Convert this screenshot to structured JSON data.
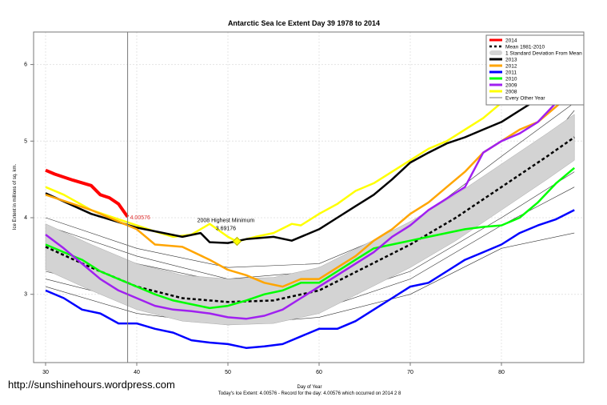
{
  "chart_data": {
    "type": "line",
    "title": "Antarctic Sea Ice Extent Day 39 1978 to 2014",
    "xlabel": "Day of Year",
    "ylabel": "Ice Extent in millions of sq. km.",
    "xlim": [
      29,
      89
    ],
    "ylim": [
      2.1,
      6.5
    ],
    "xticks": [
      30,
      40,
      50,
      60,
      70,
      80
    ],
    "yticks": [
      3,
      4,
      5,
      6
    ],
    "grid": true,
    "legend_position": "top-right",
    "footer": "Today's Ice Extent: 4.00576  - Record for the day: 4.00576 which occurred on 2014 2 8",
    "watermark": "http://sunshinehours.wordpress.com",
    "current_day": 39,
    "current_value_label": "4.00576",
    "annotation": {
      "title": "2008 Highest Minimum",
      "value": "3.69176",
      "day": 51,
      "y": 3.69176
    },
    "legend": [
      {
        "label": "2014",
        "color": "#ff0000",
        "style": "thick"
      },
      {
        "label": "Mean 1981-2010",
        "color": "#000000",
        "style": "dashed"
      },
      {
        "label": "1 Standard Deviation From Mean",
        "color": "#d3d3d3",
        "style": "band"
      },
      {
        "label": "2013",
        "color": "#000000",
        "style": "thick"
      },
      {
        "label": "2012",
        "color": "#ffa500",
        "style": "thick"
      },
      {
        "label": "2011",
        "color": "#0000ff",
        "style": "thick"
      },
      {
        "label": "2010",
        "color": "#00ff00",
        "style": "thick"
      },
      {
        "label": "2009",
        "color": "#a020f0",
        "style": "thick"
      },
      {
        "label": "2008",
        "color": "#ffff00",
        "style": "thick"
      },
      {
        "label": "Every Other Year",
        "color": "#555555",
        "style": "thin"
      }
    ],
    "mean": {
      "x": [
        30,
        35,
        40,
        45,
        50,
        55,
        60,
        65,
        70,
        75,
        80,
        85,
        88
      ],
      "y": [
        3.62,
        3.35,
        3.1,
        2.95,
        2.9,
        2.92,
        3.05,
        3.35,
        3.65,
        4.0,
        4.4,
        4.8,
        5.05
      ],
      "sd": 0.3
    },
    "series": [
      {
        "name": "2008",
        "color": "#ffff00",
        "x": [
          30,
          32,
          35,
          38,
          40,
          42,
          44,
          46,
          48,
          50,
          51,
          53,
          55,
          57,
          58,
          60,
          62,
          64,
          66,
          68,
          70,
          72,
          74,
          76,
          78,
          80,
          82,
          84,
          86,
          88
        ],
        "y": [
          4.4,
          4.3,
          4.1,
          3.98,
          3.9,
          3.82,
          3.75,
          3.78,
          3.92,
          3.75,
          3.69,
          3.75,
          3.8,
          3.92,
          3.9,
          4.05,
          4.18,
          4.35,
          4.45,
          4.6,
          4.75,
          4.9,
          5.0,
          5.15,
          5.3,
          5.5,
          5.7,
          5.9,
          6.05,
          6.2
        ]
      },
      {
        "name": "2013",
        "color": "#000000",
        "x": [
          30,
          35,
          40,
          45,
          47,
          48,
          50,
          52,
          55,
          57,
          60,
          62,
          64,
          66,
          68,
          70,
          72,
          74,
          76,
          78,
          80,
          82,
          84,
          86,
          88
        ],
        "y": [
          4.32,
          4.05,
          3.87,
          3.75,
          3.8,
          3.68,
          3.67,
          3.72,
          3.75,
          3.7,
          3.85,
          4.0,
          4.15,
          4.3,
          4.5,
          4.72,
          4.85,
          4.97,
          5.05,
          5.15,
          5.25,
          5.4,
          5.55,
          5.7,
          5.9
        ]
      },
      {
        "name": "2012",
        "color": "#ffa500",
        "x": [
          30,
          35,
          40,
          42,
          45,
          48,
          50,
          52,
          54,
          56,
          58,
          60,
          62,
          64,
          66,
          68,
          70,
          72,
          74,
          76,
          78,
          80,
          82,
          84,
          86,
          88
        ],
        "y": [
          4.3,
          4.1,
          3.85,
          3.65,
          3.62,
          3.45,
          3.32,
          3.25,
          3.15,
          3.1,
          3.2,
          3.2,
          3.35,
          3.5,
          3.7,
          3.85,
          4.05,
          4.2,
          4.4,
          4.6,
          4.85,
          5.0,
          5.15,
          5.25,
          5.45,
          5.65
        ]
      },
      {
        "name": "2011",
        "color": "#0000ff",
        "x": [
          30,
          32,
          34,
          36,
          38,
          40,
          42,
          44,
          46,
          48,
          50,
          52,
          54,
          56,
          58,
          60,
          62,
          64,
          66,
          68,
          70,
          72,
          74,
          76,
          78,
          80,
          82,
          84,
          86,
          88
        ],
        "y": [
          3.05,
          2.95,
          2.8,
          2.75,
          2.62,
          2.62,
          2.55,
          2.5,
          2.4,
          2.37,
          2.35,
          2.3,
          2.32,
          2.35,
          2.45,
          2.55,
          2.55,
          2.65,
          2.8,
          2.95,
          3.1,
          3.15,
          3.3,
          3.45,
          3.55,
          3.65,
          3.8,
          3.9,
          3.98,
          4.1
        ]
      },
      {
        "name": "2010",
        "color": "#00ff00",
        "x": [
          30,
          32,
          34,
          36,
          38,
          40,
          42,
          44,
          46,
          48,
          50,
          52,
          54,
          56,
          58,
          60,
          62,
          64,
          66,
          68,
          70,
          72,
          74,
          76,
          78,
          80,
          82,
          84,
          86,
          88
        ],
        "y": [
          3.65,
          3.55,
          3.45,
          3.3,
          3.2,
          3.1,
          3.0,
          2.92,
          2.87,
          2.82,
          2.85,
          2.92,
          3.0,
          3.05,
          3.15,
          3.15,
          3.3,
          3.45,
          3.6,
          3.65,
          3.7,
          3.75,
          3.8,
          3.85,
          3.88,
          3.9,
          4.0,
          4.2,
          4.45,
          4.65
        ]
      },
      {
        "name": "2009",
        "color": "#a020f0",
        "x": [
          30,
          32,
          34,
          36,
          38,
          40,
          42,
          44,
          46,
          48,
          50,
          52,
          54,
          56,
          58,
          60,
          62,
          64,
          66,
          68,
          70,
          72,
          74,
          76,
          78,
          80,
          82,
          84,
          86,
          88
        ],
        "y": [
          3.78,
          3.6,
          3.4,
          3.2,
          3.05,
          2.95,
          2.85,
          2.8,
          2.78,
          2.75,
          2.7,
          2.68,
          2.72,
          2.8,
          2.95,
          3.1,
          3.25,
          3.4,
          3.55,
          3.75,
          3.9,
          4.1,
          4.25,
          4.4,
          4.85,
          5.0,
          5.1,
          5.25,
          5.5,
          5.75
        ]
      },
      {
        "name": "2014",
        "color": "#ff0000",
        "x": [
          30,
          31,
          33,
          35,
          36,
          37,
          38,
          39
        ],
        "y": [
          4.62,
          4.57,
          4.49,
          4.42,
          4.3,
          4.26,
          4.18,
          4.01
        ]
      }
    ],
    "other_years": {
      "x": [
        30,
        40,
        50,
        60,
        70,
        80,
        88
      ],
      "y": [
        [
          3.5,
          3.2,
          3.0,
          3.1,
          3.5,
          4.2,
          4.9
        ],
        [
          3.3,
          3.0,
          2.8,
          2.9,
          3.3,
          4.0,
          4.6
        ],
        [
          3.9,
          3.5,
          3.2,
          3.3,
          3.8,
          4.6,
          5.3
        ],
        [
          3.2,
          2.9,
          2.7,
          2.8,
          3.2,
          3.9,
          4.4
        ],
        [
          4.0,
          3.6,
          3.35,
          3.4,
          3.9,
          4.8,
          5.5
        ],
        [
          3.4,
          3.05,
          2.9,
          3.0,
          3.6,
          4.3,
          4.8
        ],
        [
          3.7,
          3.3,
          3.05,
          3.15,
          3.7,
          4.5,
          5.2
        ],
        [
          3.1,
          2.75,
          2.6,
          2.7,
          3.0,
          3.6,
          3.8
        ],
        [
          3.6,
          3.25,
          3.1,
          3.25,
          3.8,
          4.4,
          5.0
        ],
        [
          3.8,
          3.4,
          3.15,
          3.2,
          3.55,
          4.25,
          5.4
        ]
      ]
    }
  }
}
